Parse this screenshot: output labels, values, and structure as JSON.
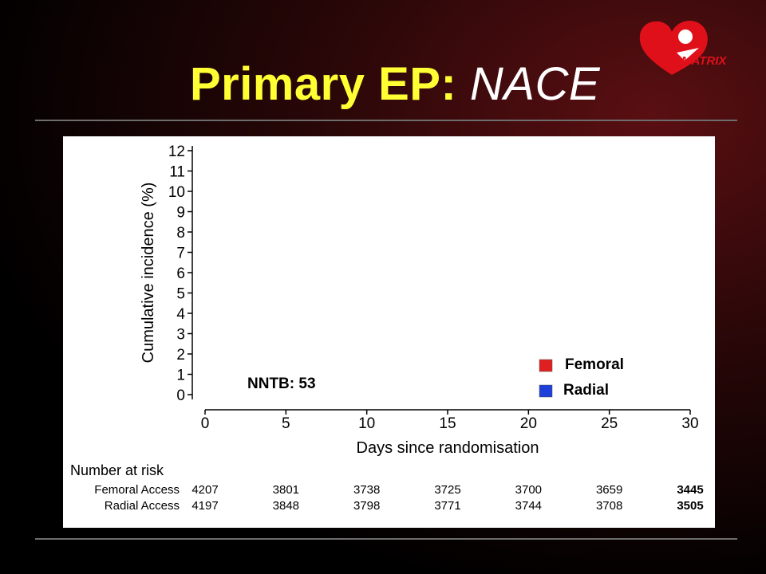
{
  "slide": {
    "title_main": "Primary EP:",
    "title_emph": "NACE",
    "logo_text": "MATRIX"
  },
  "chart_data": {
    "type": "line",
    "xlabel": "Days since randomisation",
    "ylabel": "Cumulative incidence (%)",
    "xlim": [
      0,
      30
    ],
    "ylim": [
      0,
      12
    ],
    "x_ticks": [
      0,
      5,
      10,
      15,
      20,
      25,
      30
    ],
    "y_ticks": [
      0,
      1,
      2,
      3,
      4,
      5,
      6,
      7,
      8,
      9,
      10,
      11,
      12
    ],
    "grid": false,
    "legend_position": "lower-right",
    "series": [
      {
        "name": "Femoral",
        "color": "#e02020",
        "values": []
      },
      {
        "name": "Radial",
        "color": "#1f3fd9",
        "values": []
      }
    ],
    "annotation": "NNTB: 53",
    "risk_table": {
      "title": "Number at risk",
      "rows": [
        {
          "label": "Femoral Access",
          "values": [
            4207,
            3801,
            3738,
            3725,
            3700,
            3659,
            3445
          ]
        },
        {
          "label": "Radial Access",
          "values": [
            4197,
            3848,
            3798,
            3771,
            3744,
            3708,
            3505
          ]
        }
      ]
    }
  }
}
